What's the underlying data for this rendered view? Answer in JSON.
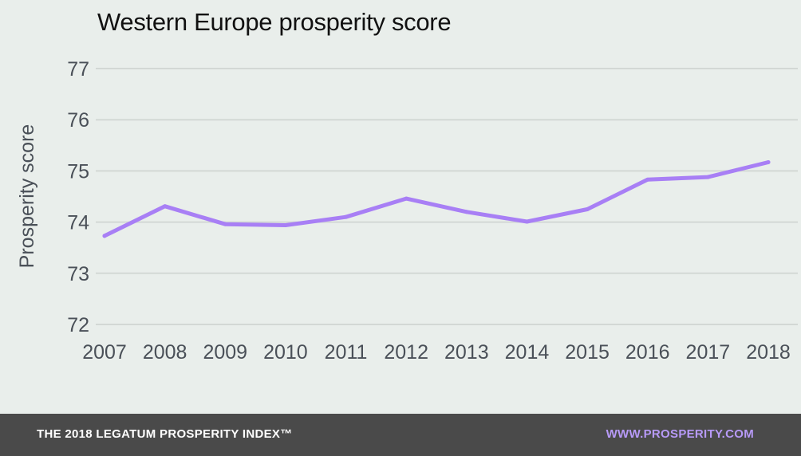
{
  "chart_data": {
    "type": "line",
    "title": "Western Europe prosperity score",
    "xlabel": "",
    "ylabel": "Prosperity score",
    "x": [
      "2007",
      "2008",
      "2009",
      "2010",
      "2011",
      "2012",
      "2013",
      "2014",
      "2015",
      "2016",
      "2017",
      "2018"
    ],
    "series": [
      {
        "values": [
          73.73,
          74.31,
          73.96,
          73.94,
          74.1,
          74.46,
          74.2,
          74.01,
          74.25,
          74.83,
          74.88,
          75.17
        ]
      }
    ],
    "yticks": [
      "72",
      "73",
      "74",
      "75",
      "76",
      "77"
    ],
    "ylim": [
      72,
      77
    ],
    "grid": "horizontal",
    "line_color": "#a87ff5",
    "grid_color": "#d3d8d5"
  },
  "footer": {
    "left_text": "THE 2018 LEGATUM PROSPERITY INDEX™",
    "right_text": "WWW.PROSPERITY.COM"
  }
}
